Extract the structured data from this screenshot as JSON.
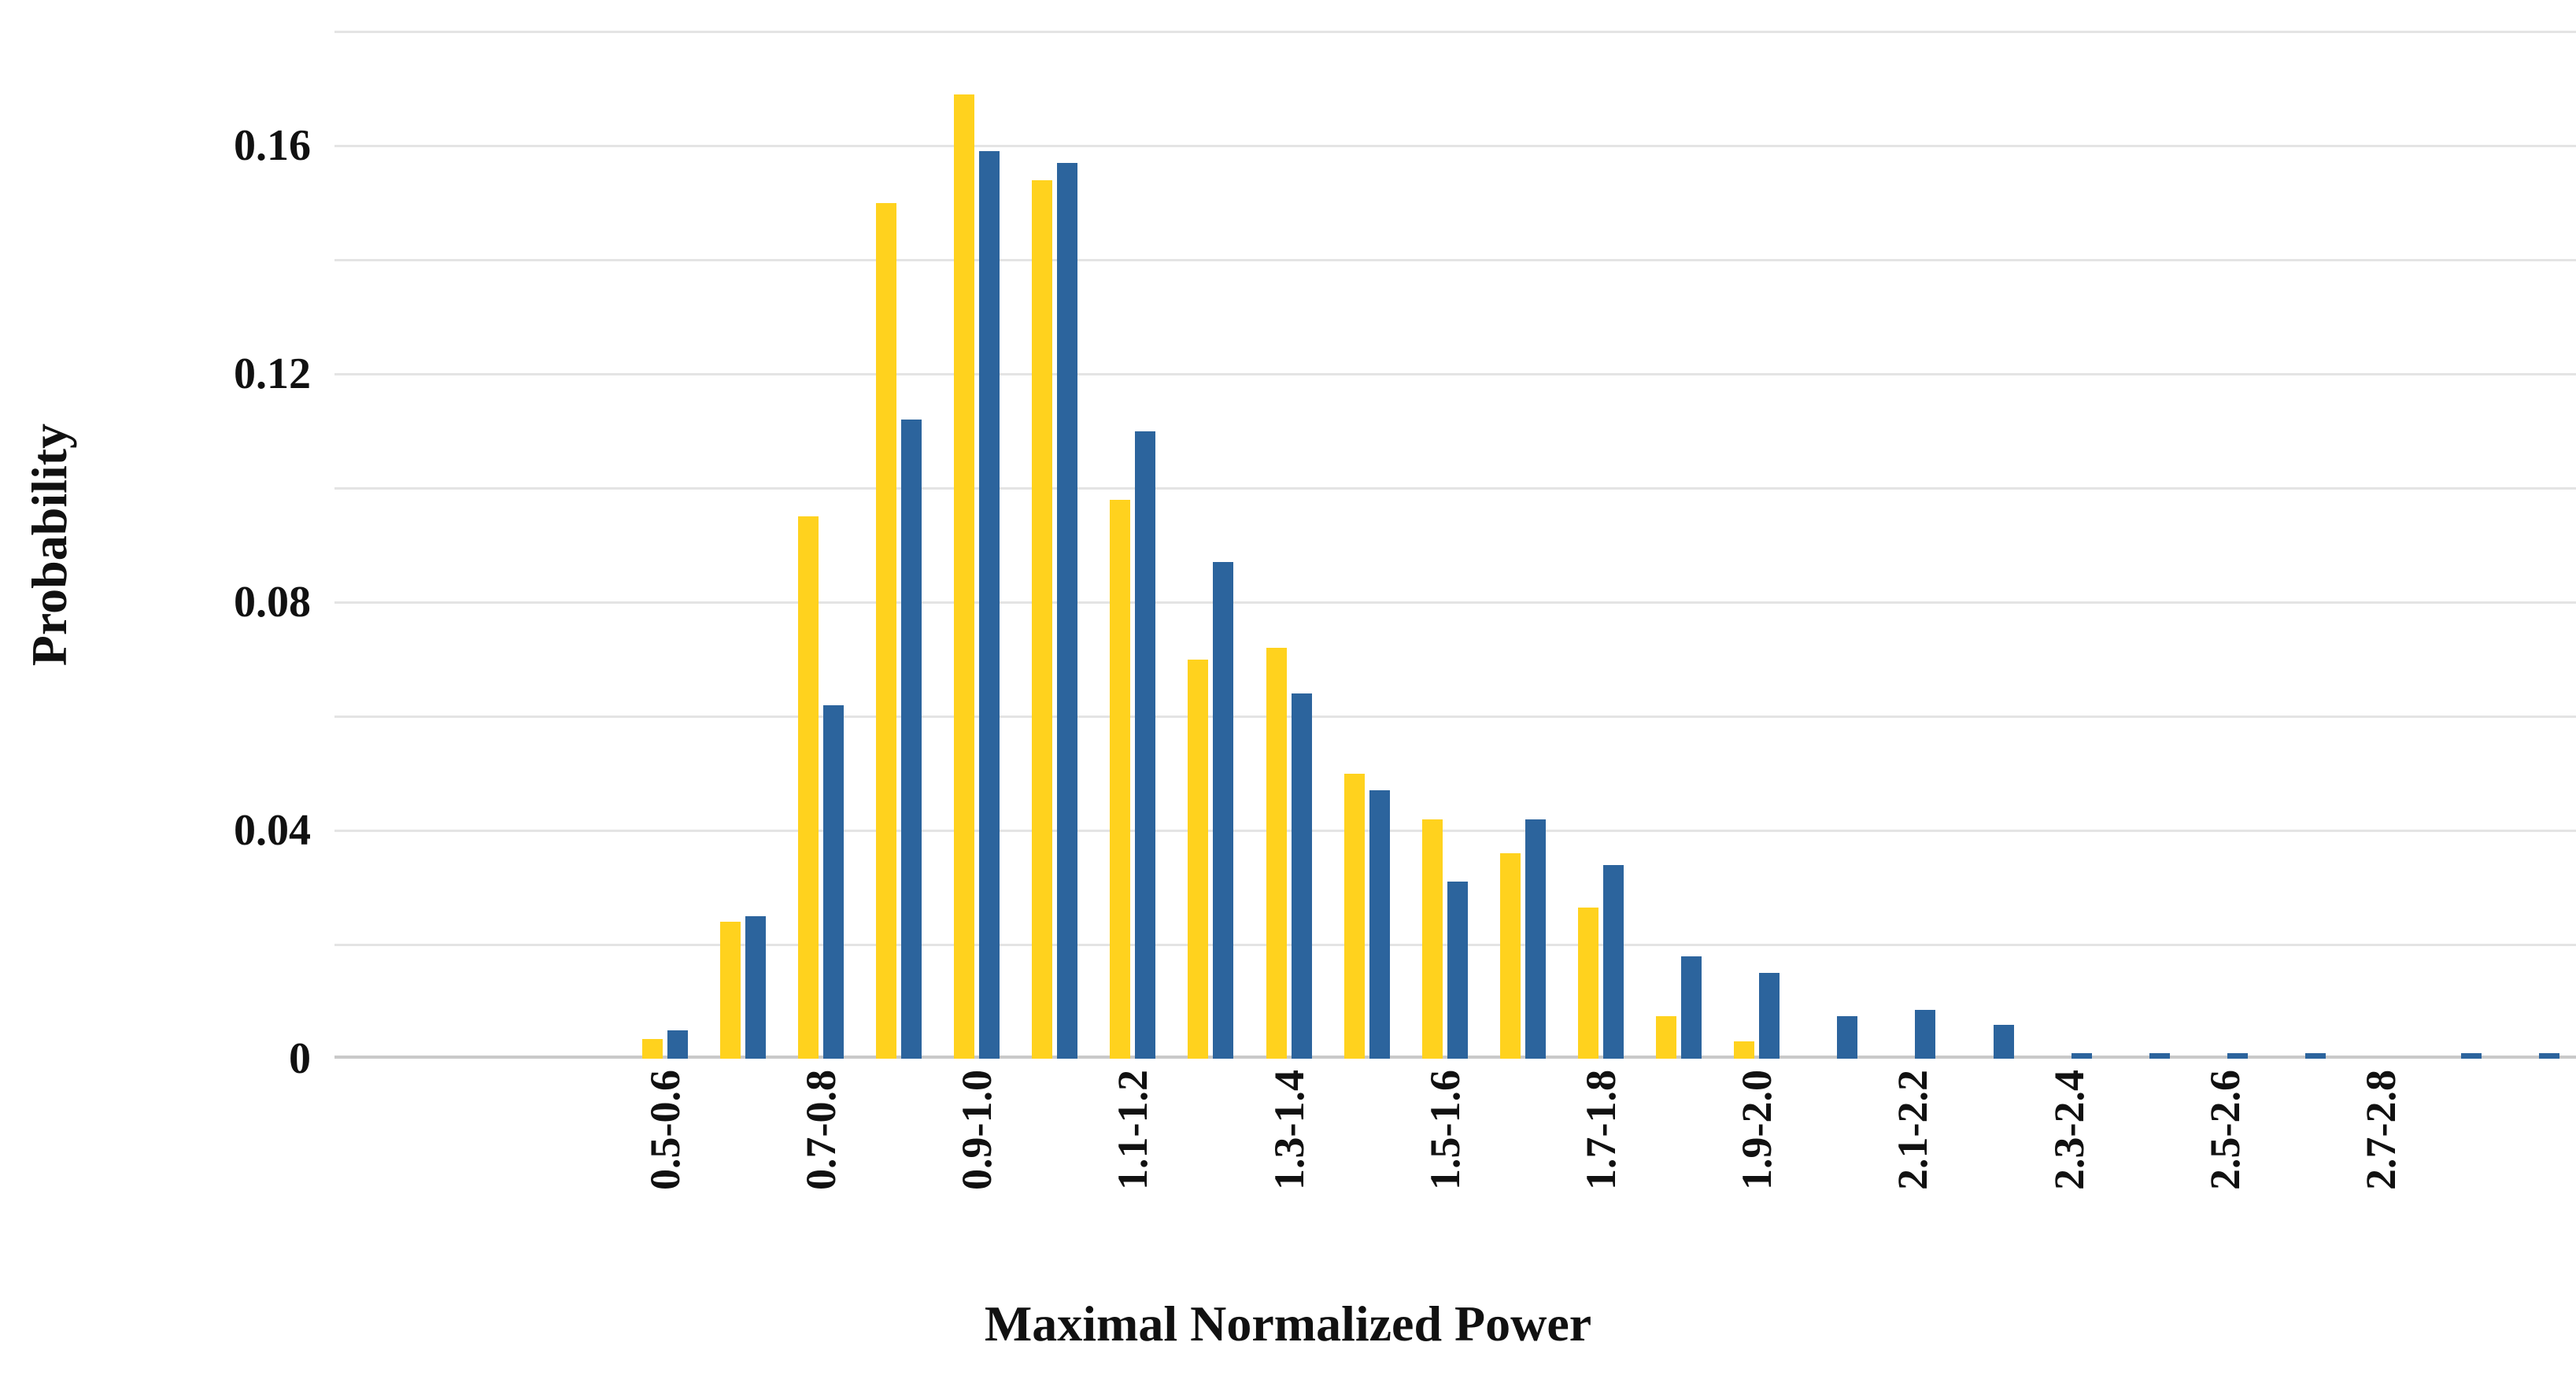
{
  "figure": {
    "background_color": "#ffffff",
    "gridline_color": "#e4e4e4",
    "axis_line_color": "#c9c9c9",
    "text_color": "#111111"
  },
  "chart_data": {
    "type": "bar",
    "title": "",
    "xlabel": "Maximal Normalized Power",
    "ylabel": "Probability",
    "ylim": [
      0,
      0.18
    ],
    "ytick_step": 0.02,
    "grid": true,
    "legend_position": "none",
    "bar_orientation": "vertical",
    "yticks": [
      {
        "value": 0,
        "label": "0"
      },
      {
        "value": 0.04,
        "label": "0.04"
      },
      {
        "value": 0.08,
        "label": "0.08"
      },
      {
        "value": 0.12,
        "label": "0.12"
      },
      {
        "value": 0.16,
        "label": "0.16"
      }
    ],
    "categories": [
      "0.5-0.6",
      "",
      "0.7-0.8",
      "",
      "0.9-1.0",
      "",
      "1.1-1.2",
      "",
      "1.3-1.4",
      "",
      "1.5-1.6",
      "",
      "1.7-1.8",
      "",
      "1.9-2.0",
      "",
      "2.1-2.2",
      "",
      "2.3-2.4",
      "",
      "2.5-2.6",
      "",
      "2.7-2.8",
      "",
      ""
    ],
    "series": [
      {
        "name": "yellow",
        "color": "#ffd21e",
        "values": [
          0.0035,
          0.024,
          0.095,
          0.15,
          0.169,
          0.154,
          0.098,
          0.07,
          0.072,
          0.05,
          0.042,
          0.036,
          0.0265,
          0.0075,
          0.003,
          0,
          0,
          0,
          0,
          0,
          0,
          0,
          0,
          0,
          0
        ]
      },
      {
        "name": "blue",
        "color": "#2c649d",
        "values": [
          0.005,
          0.025,
          0.062,
          0.112,
          0.159,
          0.157,
          0.11,
          0.087,
          0.064,
          0.047,
          0.031,
          0.042,
          0.034,
          0.018,
          0.015,
          0.0075,
          0.0085,
          0.006,
          0.001,
          0.001,
          0.001,
          0.001,
          0,
          0.001,
          0.001
        ]
      }
    ]
  }
}
